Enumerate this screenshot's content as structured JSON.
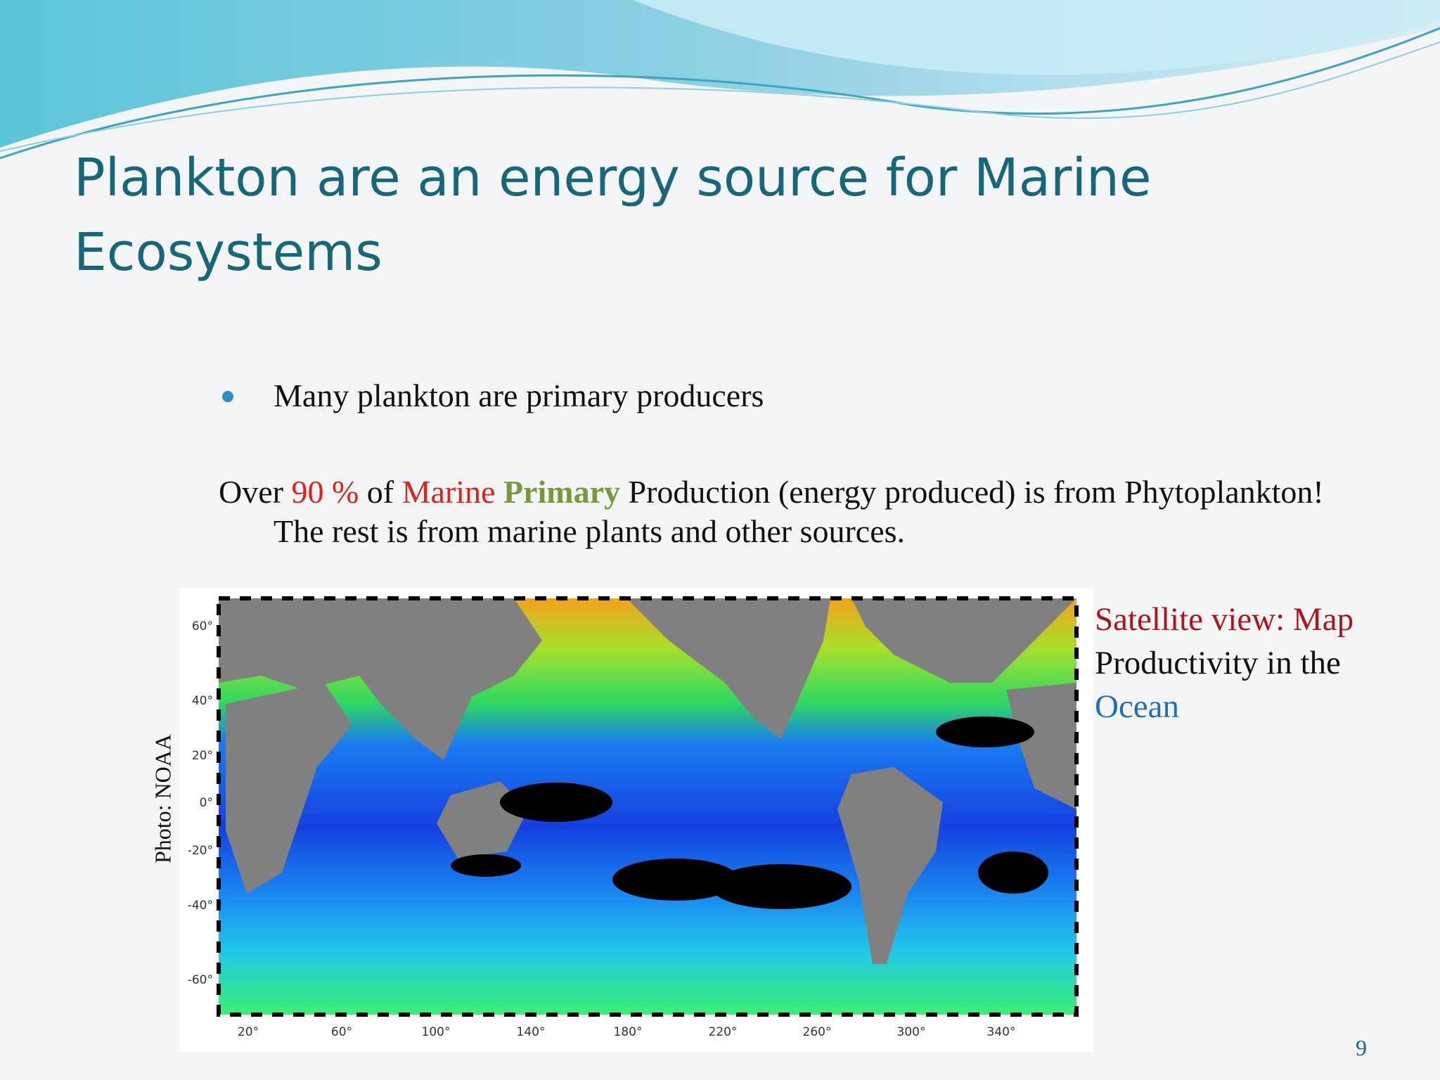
{
  "slide": {
    "title": "Plankton are an energy source for Marine Ecosystems",
    "bullet": "Many plankton are primary producers",
    "paragraph": [
      "Over ",
      "90 %",
      " of ",
      "Marine",
      " ",
      "Primary",
      " Production (energy produced) is from Phytoplankton!  The rest is from marine plants and other sources."
    ],
    "caption": [
      "Satellite view: Map",
      "Productivity in the",
      "Ocean"
    ],
    "credit": "Photo: NOAA",
    "page_number": "9",
    "map": {
      "lat_labels": [
        "60°",
        "40°",
        "20°",
        "0°",
        "-20°",
        "-40°",
        "-60°"
      ],
      "lon_labels": [
        "20°",
        "60°",
        "100°",
        "140°",
        "180°",
        "220°",
        "260°",
        "300°",
        "340°"
      ]
    }
  }
}
